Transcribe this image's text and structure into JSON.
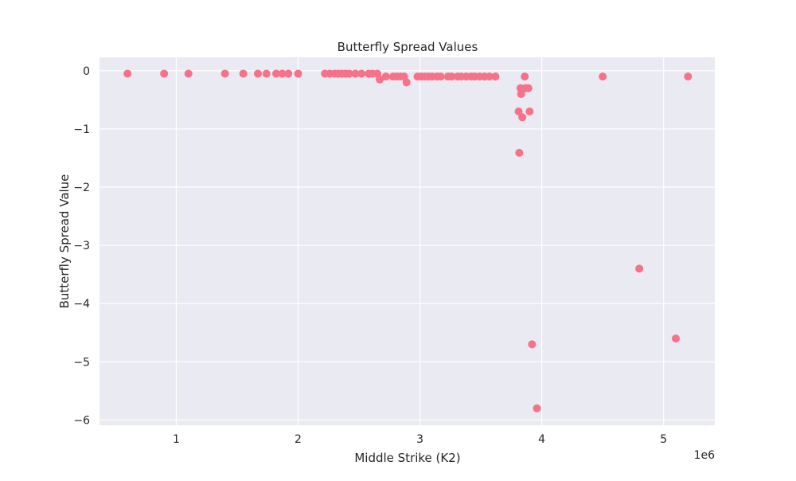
{
  "chart_data": {
    "type": "scatter",
    "title": "Butterfly Spread Values",
    "xlabel": "Middle Strike (K2)",
    "ylabel": "Butterfly Spread Value",
    "x_offset_label": "1e6",
    "xlim": [
      370000,
      5420000
    ],
    "ylim": [
      -6.09,
      0.23
    ],
    "x_ticks": [
      1000000,
      2000000,
      3000000,
      4000000,
      5000000
    ],
    "x_tick_labels": [
      "1",
      "2",
      "3",
      "4",
      "5"
    ],
    "y_ticks": [
      0,
      -1,
      -2,
      -3,
      -4,
      -5,
      -6
    ],
    "y_tick_labels": [
      "0",
      "−1",
      "−2",
      "−3",
      "−4",
      "−5",
      "−6"
    ],
    "grid": true,
    "marker_color": "#f77189",
    "background_color": "#eaeaf2",
    "points": [
      {
        "x": 600000,
        "y": -0.05
      },
      {
        "x": 900000,
        "y": -0.05
      },
      {
        "x": 1100000,
        "y": -0.05
      },
      {
        "x": 1400000,
        "y": -0.05
      },
      {
        "x": 1550000,
        "y": -0.05
      },
      {
        "x": 1670000,
        "y": -0.05
      },
      {
        "x": 1740000,
        "y": -0.05
      },
      {
        "x": 1820000,
        "y": -0.05
      },
      {
        "x": 1870000,
        "y": -0.05
      },
      {
        "x": 1920000,
        "y": -0.05
      },
      {
        "x": 2000000,
        "y": -0.05
      },
      {
        "x": 2220000,
        "y": -0.05
      },
      {
        "x": 2260000,
        "y": -0.05
      },
      {
        "x": 2300000,
        "y": -0.05
      },
      {
        "x": 2330000,
        "y": -0.05
      },
      {
        "x": 2360000,
        "y": -0.05
      },
      {
        "x": 2390000,
        "y": -0.05
      },
      {
        "x": 2420000,
        "y": -0.05
      },
      {
        "x": 2470000,
        "y": -0.05
      },
      {
        "x": 2520000,
        "y": -0.05
      },
      {
        "x": 2580000,
        "y": -0.05
      },
      {
        "x": 2610000,
        "y": -0.05
      },
      {
        "x": 2650000,
        "y": -0.05
      },
      {
        "x": 2670000,
        "y": -0.15
      },
      {
        "x": 2720000,
        "y": -0.1
      },
      {
        "x": 2780000,
        "y": -0.1
      },
      {
        "x": 2810000,
        "y": -0.1
      },
      {
        "x": 2840000,
        "y": -0.1
      },
      {
        "x": 2870000,
        "y": -0.1
      },
      {
        "x": 2890000,
        "y": -0.2
      },
      {
        "x": 2980000,
        "y": -0.1
      },
      {
        "x": 3010000,
        "y": -0.1
      },
      {
        "x": 3040000,
        "y": -0.1
      },
      {
        "x": 3070000,
        "y": -0.1
      },
      {
        "x": 3100000,
        "y": -0.1
      },
      {
        "x": 3140000,
        "y": -0.1
      },
      {
        "x": 3170000,
        "y": -0.1
      },
      {
        "x": 3230000,
        "y": -0.1
      },
      {
        "x": 3260000,
        "y": -0.1
      },
      {
        "x": 3310000,
        "y": -0.1
      },
      {
        "x": 3340000,
        "y": -0.1
      },
      {
        "x": 3380000,
        "y": -0.1
      },
      {
        "x": 3420000,
        "y": -0.1
      },
      {
        "x": 3450000,
        "y": -0.1
      },
      {
        "x": 3490000,
        "y": -0.1
      },
      {
        "x": 3530000,
        "y": -0.1
      },
      {
        "x": 3570000,
        "y": -0.1
      },
      {
        "x": 3620000,
        "y": -0.1
      },
      {
        "x": 3810000,
        "y": -0.7
      },
      {
        "x": 3815000,
        "y": -1.41
      },
      {
        "x": 3825000,
        "y": -0.3
      },
      {
        "x": 3830000,
        "y": -0.4
      },
      {
        "x": 3840000,
        "y": -0.8
      },
      {
        "x": 3860000,
        "y": -0.1
      },
      {
        "x": 3865000,
        "y": -0.3
      },
      {
        "x": 3890000,
        "y": -0.3
      },
      {
        "x": 3900000,
        "y": -0.7
      },
      {
        "x": 3920000,
        "y": -4.7
      },
      {
        "x": 3960000,
        "y": -5.8
      },
      {
        "x": 4500000,
        "y": -0.1
      },
      {
        "x": 4800000,
        "y": -3.4
      },
      {
        "x": 5100000,
        "y": -4.6
      },
      {
        "x": 5200000,
        "y": -0.1
      }
    ]
  }
}
